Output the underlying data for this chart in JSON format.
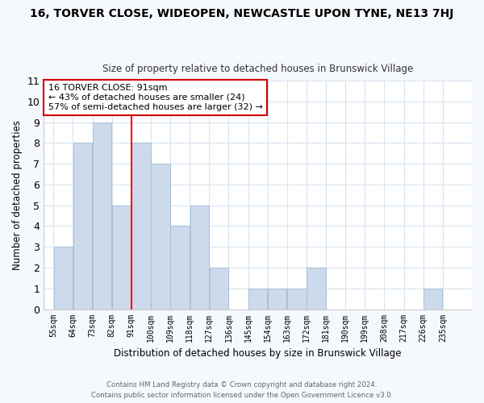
{
  "title": "16, TORVER CLOSE, WIDEOPEN, NEWCASTLE UPON TYNE, NE13 7HJ",
  "subtitle": "Size of property relative to detached houses in Brunswick Village",
  "xlabel": "Distribution of detached houses by size in Brunswick Village",
  "ylabel": "Number of detached properties",
  "footer1": "Contains HM Land Registry data © Crown copyright and database right 2024.",
  "footer2": "Contains public sector information licensed under the Open Government Licence v3.0.",
  "bins": [
    55,
    64,
    73,
    82,
    91,
    100,
    109,
    118,
    127,
    136,
    145,
    154,
    163,
    172,
    181,
    190,
    199,
    208,
    217,
    226,
    235
  ],
  "bin_labels": [
    "55sqm",
    "64sqm",
    "73sqm",
    "82sqm",
    "91sqm",
    "100sqm",
    "109sqm",
    "118sqm",
    "127sqm",
    "136sqm",
    "145sqm",
    "154sqm",
    "163sqm",
    "172sqm",
    "181sqm",
    "190sqm",
    "199sqm",
    "208sqm",
    "217sqm",
    "226sqm",
    "235sqm"
  ],
  "counts": [
    3,
    8,
    9,
    5,
    8,
    7,
    4,
    5,
    2,
    0,
    1,
    1,
    1,
    2,
    0,
    0,
    0,
    0,
    0,
    1,
    0
  ],
  "bar_color": "#ccdaeb",
  "bar_edge_color": "#a8c0d8",
  "redline_x": 91,
  "ylim": [
    0,
    11
  ],
  "yticks": [
    0,
    1,
    2,
    3,
    4,
    5,
    6,
    7,
    8,
    9,
    10,
    11
  ],
  "annotation_title": "16 TORVER CLOSE: 91sqm",
  "annotation_line1": "← 43% of detached houses are smaller (24)",
  "annotation_line2": "57% of semi-detached houses are larger (32) →",
  "annotation_box_color": "#ffffff",
  "annotation_box_edge": "#cc0000",
  "grid_color": "#d8e4f0",
  "background_color": "#ffffff",
  "fig_background": "#f5f8fc"
}
